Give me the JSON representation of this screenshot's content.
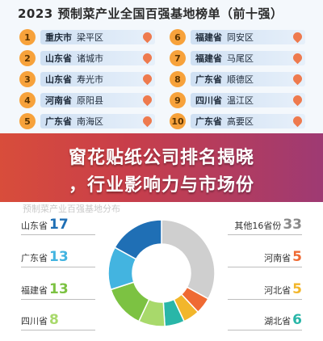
{
  "header": {
    "title": "2023 预制菜产业全国百强基地榜单（前十强）"
  },
  "ranking": [
    {
      "rank": "1",
      "province": "重庆市",
      "district": "梁平区"
    },
    {
      "rank": "2",
      "province": "山东省",
      "district": "诸城市"
    },
    {
      "rank": "3",
      "province": "山东省",
      "district": "寿光市"
    },
    {
      "rank": "4",
      "province": "河南省",
      "district": "原阳县"
    },
    {
      "rank": "5",
      "province": "广东省",
      "district": "南海区"
    },
    {
      "rank": "6",
      "province": "福建省",
      "district": "同安区"
    },
    {
      "rank": "7",
      "province": "福建省",
      "district": "马尾区"
    },
    {
      "rank": "8",
      "province": "广东省",
      "district": "顺德区"
    },
    {
      "rank": "9",
      "province": "四川省",
      "district": "温江区"
    },
    {
      "rank": "10",
      "province": "广东省",
      "district": "高要区"
    }
  ],
  "banner": {
    "line1": "窗花贴纸公司排名揭晓",
    "line2": "，行业影响力与市场份",
    "background": "#d84d3b"
  },
  "distribution": {
    "faded_caption": "预制菜产业百强基地分布",
    "items": [
      {
        "name": "山东省",
        "value": "17",
        "color": "#1f6fb5"
      },
      {
        "name": "广东省",
        "value": "13",
        "color": "#43b4e0"
      },
      {
        "name": "福建省",
        "value": "13",
        "color": "#7cc242"
      },
      {
        "name": "四川省",
        "value": "8",
        "color": "#a8d96b"
      },
      {
        "name": "湖北省",
        "value": "6",
        "color": "#29b6a8"
      },
      {
        "name": "河北省",
        "value": "5",
        "color": "#f2b62b"
      },
      {
        "name": "河南省",
        "value": "5",
        "color": "#ef6a33"
      },
      {
        "name": "其他16省份",
        "value": "33",
        "color": "#cfcfcf"
      }
    ]
  }
}
